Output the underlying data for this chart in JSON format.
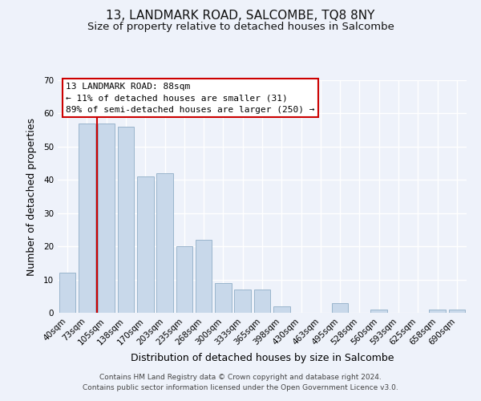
{
  "title": "13, LANDMARK ROAD, SALCOMBE, TQ8 8NY",
  "subtitle": "Size of property relative to detached houses in Salcombe",
  "xlabel": "Distribution of detached houses by size in Salcombe",
  "ylabel": "Number of detached properties",
  "bar_labels": [
    "40sqm",
    "73sqm",
    "105sqm",
    "138sqm",
    "170sqm",
    "203sqm",
    "235sqm",
    "268sqm",
    "300sqm",
    "333sqm",
    "365sqm",
    "398sqm",
    "430sqm",
    "463sqm",
    "495sqm",
    "528sqm",
    "560sqm",
    "593sqm",
    "625sqm",
    "658sqm",
    "690sqm"
  ],
  "bar_values": [
    12,
    57,
    57,
    56,
    41,
    42,
    20,
    22,
    9,
    7,
    7,
    2,
    0,
    0,
    3,
    0,
    1,
    0,
    0,
    1,
    1
  ],
  "bar_color": "#c8d8ea",
  "bar_edge_color": "#9ab5cc",
  "vline_x_bar_index": 1,
  "vline_color": "#cc0000",
  "ylim": [
    0,
    70
  ],
  "yticks": [
    0,
    10,
    20,
    30,
    40,
    50,
    60,
    70
  ],
  "annotation_title": "13 LANDMARK ROAD: 88sqm",
  "annotation_line1": "← 11% of detached houses are smaller (31)",
  "annotation_line2": "89% of semi-detached houses are larger (250) →",
  "annotation_box_color": "#ffffff",
  "annotation_box_edge": "#cc0000",
  "footer_line1": "Contains HM Land Registry data © Crown copyright and database right 2024.",
  "footer_line2": "Contains public sector information licensed under the Open Government Licence v3.0.",
  "background_color": "#eef2fa",
  "grid_color": "#ffffff",
  "title_fontsize": 11,
  "subtitle_fontsize": 9.5,
  "axis_label_fontsize": 9,
  "tick_fontsize": 7.5,
  "footer_fontsize": 6.5,
  "annotation_fontsize": 8
}
